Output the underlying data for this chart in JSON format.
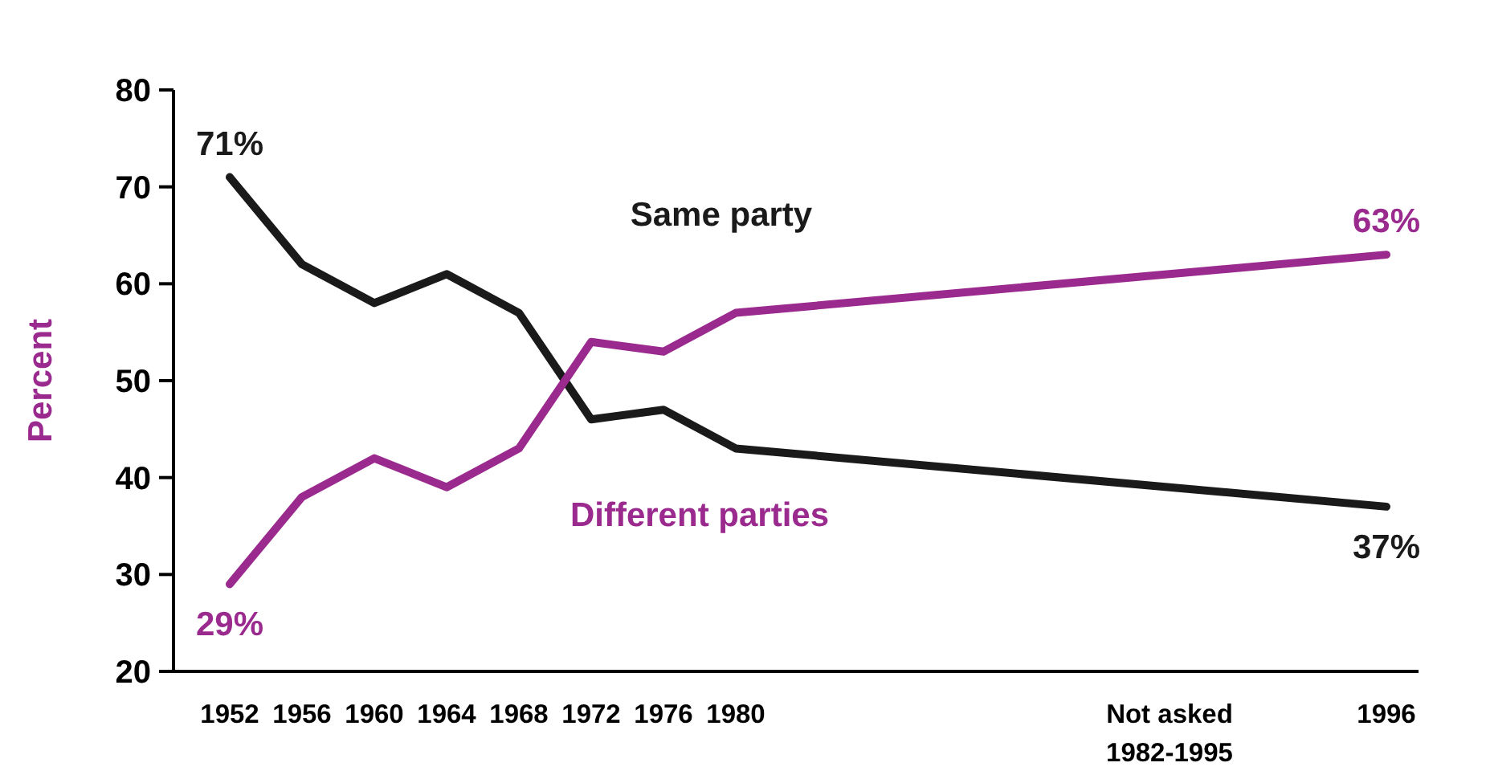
{
  "chart_data": {
    "type": "line",
    "ylabel": "Percent",
    "categories": [
      "1952",
      "1956",
      "1960",
      "1964",
      "1968",
      "1972",
      "1976",
      "1980",
      null,
      null,
      null,
      null,
      null,
      "Not asked 1982-1995",
      null,
      null,
      "1996"
    ],
    "series": [
      {
        "name": "Same party",
        "color": "#1a1a1a",
        "values": [
          71,
          62,
          58,
          61,
          57,
          46,
          47,
          43,
          null,
          null,
          null,
          null,
          null,
          null,
          null,
          null,
          37
        ],
        "value_labels": [
          "71%",
          null,
          null,
          null,
          null,
          null,
          null,
          null,
          null,
          null,
          null,
          null,
          null,
          null,
          null,
          null,
          "37%"
        ]
      },
      {
        "name": "Different parties",
        "color": "#9b2a8f",
        "values": [
          29,
          38,
          42,
          39,
          43,
          54,
          53,
          57,
          null,
          null,
          null,
          null,
          null,
          null,
          null,
          null,
          63
        ],
        "value_labels": [
          "29%",
          null,
          null,
          null,
          null,
          null,
          null,
          null,
          null,
          null,
          null,
          null,
          null,
          null,
          null,
          null,
          "63%"
        ]
      }
    ],
    "ylim": [
      20,
      80
    ],
    "yticks": [
      20,
      30,
      40,
      50,
      60,
      70,
      80
    ],
    "grid": false,
    "legend": false,
    "marker": "none",
    "line_style": "solid"
  }
}
